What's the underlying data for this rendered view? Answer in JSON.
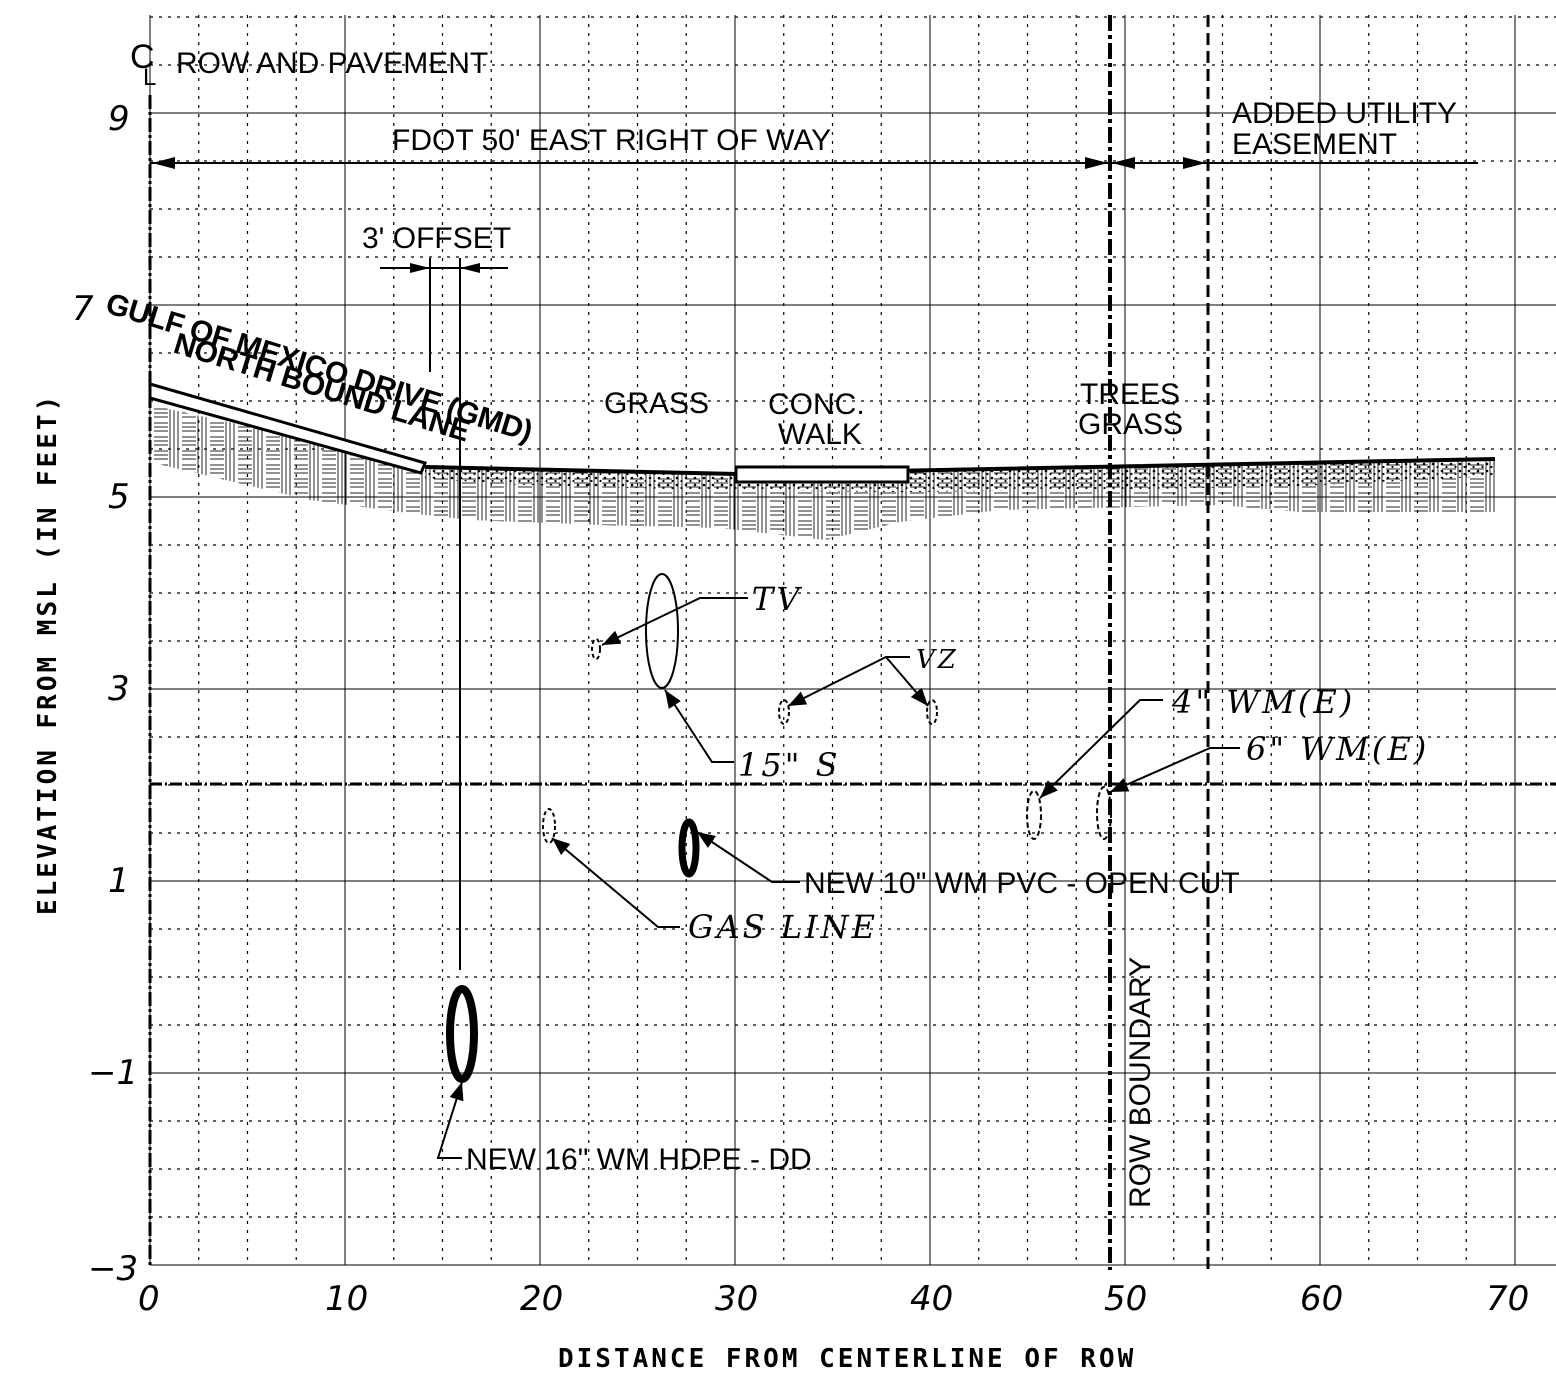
{
  "axes": {
    "x_title": "DISTANCE FROM CENTERLINE OF ROW",
    "y_title": "ELEVATION FROM MSL (IN FEET)",
    "x_ticks": [
      "0",
      "10",
      "20",
      "30",
      "40",
      "50",
      "60",
      "70"
    ],
    "y_ticks": [
      "9",
      "7",
      "5",
      "3",
      "1",
      "−1",
      "−3"
    ],
    "x_range": [
      0,
      70
    ],
    "y_range": [
      -3,
      10
    ]
  },
  "labels": {
    "cl_symbol_c": "C",
    "cl_symbol_l": "L",
    "row_and_pavement": "ROW AND PAVEMENT",
    "fdot_row": "FDOT 50' EAST RIGHT OF WAY",
    "added_easement_1": "ADDED UTILITY",
    "added_easement_2": "EASEMENT",
    "offset": "3' OFFSET",
    "road_1": "GULF OF MEXICO DRIVE (GMD)",
    "road_2": "NORTH BOUND LANE",
    "grass": "GRASS",
    "conc_1": "CONC.",
    "conc_2": "WALK",
    "trees": "TREES",
    "trees_grass": "GRASS",
    "row_boundary": "ROW BOUNDARY"
  },
  "utilities": {
    "tv": "TV",
    "vz": "VZ",
    "sewer_15": "15\" S",
    "wm4": "4\" WM(E)",
    "wm6": "6\" WM(E)",
    "gas": "GAS LINE",
    "new10": "NEW 10\" WM PVC - OPEN CUT",
    "new16": "NEW 16\" WM HDPE - DD"
  }
}
